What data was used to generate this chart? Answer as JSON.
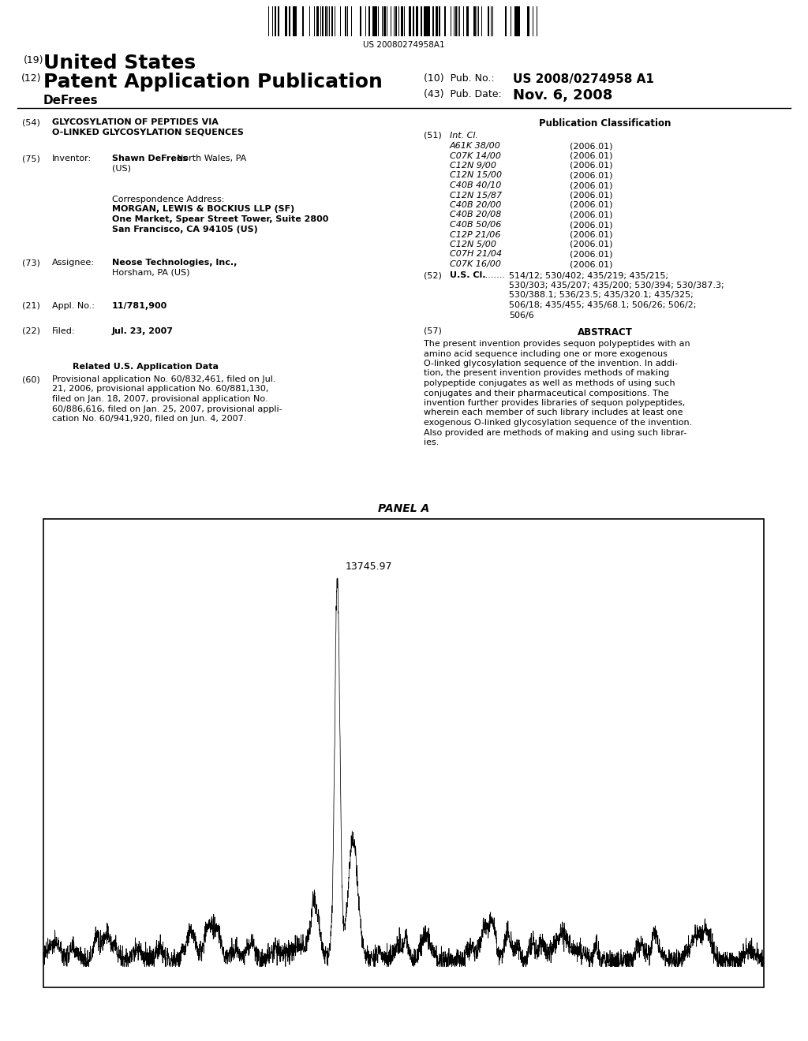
{
  "barcode_text": "US 20080274958A1",
  "header_line1_num": "(19)",
  "header_line1_text": "United States",
  "header_line2_num": "(12)",
  "header_line2_text": "Patent Application Publication",
  "header_line3_name": "DeFrees",
  "right_header_pub_num_label": "(10)  Pub. No.:",
  "right_header_pub_num_value": "US 2008/0274958 A1",
  "right_header_date_label": "(43)  Pub. Date:",
  "right_header_date_value": "Nov. 6, 2008",
  "field54_num": "(54)",
  "field54_title_line1": "GLYCOSYLATION OF PEPTIDES VIA",
  "field54_title_line2": "O-LINKED GLYCOSYLATION SEQUENCES",
  "field75_num": "(75)",
  "field75_label": "Inventor:",
  "field75_value_bold": "Shawn DeFrees",
  "field75_value_normal": ", North Wales, PA",
  "field75_value_line2": "(US)",
  "corr_label": "Correspondence Address:",
  "corr_line1": "MORGAN, LEWIS & BOCKIUS LLP (SF)",
  "corr_line2": "One Market, Spear Street Tower, Suite 2800",
  "corr_line3": "San Francisco, CA 94105 (US)",
  "field73_num": "(73)",
  "field73_label": "Assignee:",
  "field73_value_bold": "Neose Technologies, Inc.,",
  "field73_value_normal": "Horsham, PA (US)",
  "field21_num": "(21)",
  "field21_label": "Appl. No.:",
  "field21_value": "11/781,900",
  "field22_num": "(22)",
  "field22_label": "Filed:",
  "field22_value": "Jul. 23, 2007",
  "related_title": "Related U.S. Application Data",
  "field60_num": "(60)",
  "field60_lines": [
    "Provisional application No. 60/832,461, filed on Jul.",
    "21, 2006, provisional application No. 60/881,130,",
    "filed on Jan. 18, 2007, provisional application No.",
    "60/886,616, filed on Jan. 25, 2007, provisional appli-",
    "cation No. 60/941,920, filed on Jun. 4, 2007."
  ],
  "pub_class_title": "Publication Classification",
  "field51_num": "(51)",
  "field51_label": "Int. Cl.",
  "int_cl_entries": [
    [
      "A61K 38/00",
      "(2006.01)"
    ],
    [
      "C07K 14/00",
      "(2006.01)"
    ],
    [
      "C12N 9/00",
      "(2006.01)"
    ],
    [
      "C12N 15/00",
      "(2006.01)"
    ],
    [
      "C40B 40/10",
      "(2006.01)"
    ],
    [
      "C12N 15/87",
      "(2006.01)"
    ],
    [
      "C40B 20/00",
      "(2006.01)"
    ],
    [
      "C40B 20/08",
      "(2006.01)"
    ],
    [
      "C40B 50/06",
      "(2006.01)"
    ],
    [
      "C12P 21/06",
      "(2006.01)"
    ],
    [
      "C12N 5/00",
      "(2006.01)"
    ],
    [
      "C07H 21/04",
      "(2006.01)"
    ],
    [
      "C07K 16/00",
      "(2006.01)"
    ]
  ],
  "field52_num": "(52)",
  "field52_label": "U.S. Cl.",
  "field52_dots": "........",
  "field52_lines": [
    "514/12; 530/402; 435/219; 435/215;",
    "530/303; 435/207; 435/200; 530/394; 530/387.3;",
    "530/388.1; 536/23.5; 435/320.1; 435/325;",
    "506/18; 435/455; 435/68.1; 506/26; 506/2;",
    "506/6"
  ],
  "field57_num": "(57)",
  "field57_label": "ABSTRACT",
  "abstract_lines": [
    "The present invention provides sequon polypeptides with an",
    "amino acid sequence including one or more exogenous",
    "O-linked glycosylation sequence of the invention. In addi-",
    "tion, the present invention provides methods of making",
    "polypeptide conjugates as well as methods of using such",
    "conjugates and their pharmaceutical compositions. The",
    "invention further provides libraries of sequon polypeptides,",
    "wherein each member of such library includes at least one",
    "exogenous O-linked glycosylation sequence of the invention.",
    "Also provided are methods of making and using such librar-",
    "ies."
  ],
  "panel_title": "PANEL A",
  "peak_label": "13745.97",
  "bg_color": "#ffffff",
  "text_color": "#000000",
  "line_color": "#000000"
}
